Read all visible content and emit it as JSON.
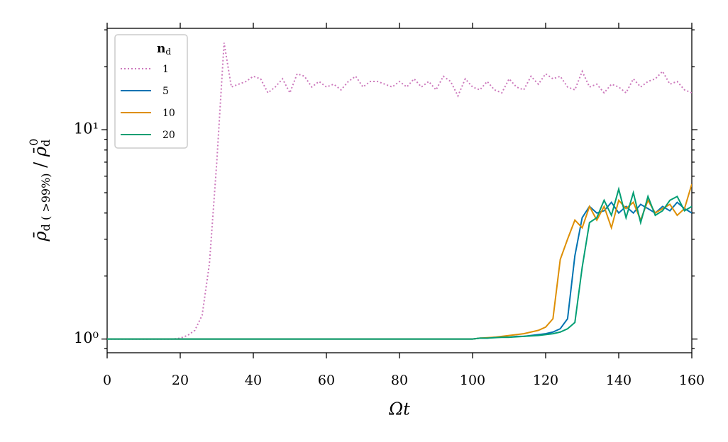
{
  "chart_data": {
    "type": "line",
    "xlabel": "Ωt",
    "ylabel": {
      "rho": "ρ̄",
      "sub1": "d ( >99%)",
      "sep": " / ",
      "rho2": "ρ̄",
      "sub2": "d",
      "sup2": "0"
    },
    "legend_title": {
      "main": "n",
      "sub": "d"
    },
    "legend": "upper left",
    "yscale": "log",
    "xlim": [
      0,
      160
    ],
    "ylim": [
      0.86,
      30.5
    ],
    "xticks": [
      0,
      20,
      40,
      60,
      80,
      100,
      120,
      140,
      160
    ],
    "yticks": [
      {
        "value": 1,
        "label": "10⁰"
      },
      {
        "value": 10,
        "label": "10¹"
      }
    ],
    "yminorticks": [
      0.9,
      2,
      3,
      4,
      5,
      6,
      7,
      8,
      9,
      20,
      30
    ],
    "x": [
      0,
      2,
      4,
      6,
      8,
      10,
      12,
      14,
      16,
      18,
      20,
      22,
      24,
      26,
      28,
      30,
      32,
      34,
      36,
      38,
      40,
      42,
      44,
      46,
      48,
      50,
      52,
      54,
      56,
      58,
      60,
      62,
      64,
      66,
      68,
      70,
      72,
      74,
      76,
      78,
      80,
      82,
      84,
      86,
      88,
      90,
      92,
      94,
      96,
      98,
      100,
      102,
      104,
      106,
      108,
      110,
      112,
      114,
      116,
      118,
      120,
      122,
      124,
      126,
      128,
      130,
      132,
      134,
      136,
      138,
      140,
      142,
      144,
      146,
      148,
      150,
      152,
      154,
      156,
      158,
      160
    ],
    "series": [
      {
        "name": "1",
        "color": "#cc78bc",
        "linestyle": "dotted",
        "values": [
          1,
          1,
          1,
          1,
          1,
          1,
          1,
          1,
          1,
          1.0,
          1.01,
          1.04,
          1.1,
          1.3,
          2.3,
          7,
          26,
          16,
          16.5,
          17,
          18,
          17.5,
          15,
          16,
          17.5,
          15,
          18.5,
          18,
          16,
          17,
          16,
          16.5,
          15.5,
          17,
          18,
          16,
          17,
          17,
          16.5,
          16,
          17,
          16,
          17.5,
          16,
          17,
          15.5,
          18,
          17,
          14.5,
          17.5,
          16,
          15.5,
          17,
          15.5,
          15,
          17.5,
          16,
          15.5,
          18,
          16.5,
          18.5,
          17.5,
          18,
          16,
          15.5,
          19,
          16,
          16.5,
          15,
          16.5,
          16,
          15,
          17.5,
          16,
          17,
          17.5,
          19,
          16.5,
          17,
          15.5,
          15
        ]
      },
      {
        "name": "5",
        "color": "#0173b2",
        "linestyle": "solid",
        "values": [
          1,
          1,
          1,
          1,
          1,
          1,
          1,
          1,
          1,
          1,
          1,
          1,
          1,
          1,
          1,
          1,
          1,
          1,
          1,
          1,
          1,
          1,
          1,
          1,
          1,
          1,
          1,
          1,
          1,
          1,
          1,
          1,
          1,
          1,
          1,
          1,
          1,
          1,
          1,
          1,
          1,
          1,
          1,
          1,
          1,
          1,
          1,
          1,
          1,
          1,
          1,
          1.01,
          1.01,
          1.02,
          1.02,
          1.02,
          1.03,
          1.03,
          1.04,
          1.05,
          1.06,
          1.08,
          1.12,
          1.25,
          2.5,
          3.8,
          4.3,
          4.0,
          4.1,
          4.5,
          4.0,
          4.3,
          4.0,
          4.4,
          4.2,
          4.0,
          4.3,
          4.1,
          4.5,
          4.2,
          4.0
        ]
      },
      {
        "name": "10",
        "color": "#de8f05",
        "linestyle": "solid",
        "values": [
          1,
          1,
          1,
          1,
          1,
          1,
          1,
          1,
          1,
          1,
          1,
          1,
          1,
          1,
          1,
          1,
          1,
          1,
          1,
          1,
          1,
          1,
          1,
          1,
          1,
          1,
          1,
          1,
          1,
          1,
          1,
          1,
          1,
          1,
          1,
          1,
          1,
          1,
          1,
          1,
          1,
          1,
          1,
          1,
          1,
          1,
          1,
          1,
          1,
          1,
          1,
          1.01,
          1.015,
          1.02,
          1.03,
          1.04,
          1.05,
          1.06,
          1.08,
          1.1,
          1.14,
          1.25,
          2.4,
          3.0,
          3.7,
          3.4,
          4.3,
          3.7,
          4.3,
          3.4,
          4.6,
          4.2,
          4.5,
          3.7,
          4.6,
          4.0,
          4.2,
          4.4,
          3.9,
          4.2,
          5.5
        ]
      },
      {
        "name": "20",
        "color": "#029e73",
        "linestyle": "solid",
        "values": [
          1,
          1,
          1,
          1,
          1,
          1,
          1,
          1,
          1,
          1,
          1,
          1,
          1,
          1,
          1,
          1,
          1,
          1,
          1,
          1,
          1,
          1,
          1,
          1,
          1,
          1,
          1,
          1,
          1,
          1,
          1,
          1,
          1,
          1,
          1,
          1,
          1,
          1,
          1,
          1,
          1,
          1,
          1,
          1,
          1,
          1,
          1,
          1,
          1,
          1,
          1,
          1.01,
          1.01,
          1.015,
          1.02,
          1.02,
          1.025,
          1.03,
          1.035,
          1.04,
          1.05,
          1.06,
          1.08,
          1.12,
          1.2,
          2.2,
          3.6,
          3.8,
          4.6,
          3.9,
          5.2,
          3.8,
          5.0,
          3.6,
          4.8,
          3.9,
          4.1,
          4.6,
          4.8,
          4.1,
          4.3
        ]
      }
    ]
  }
}
